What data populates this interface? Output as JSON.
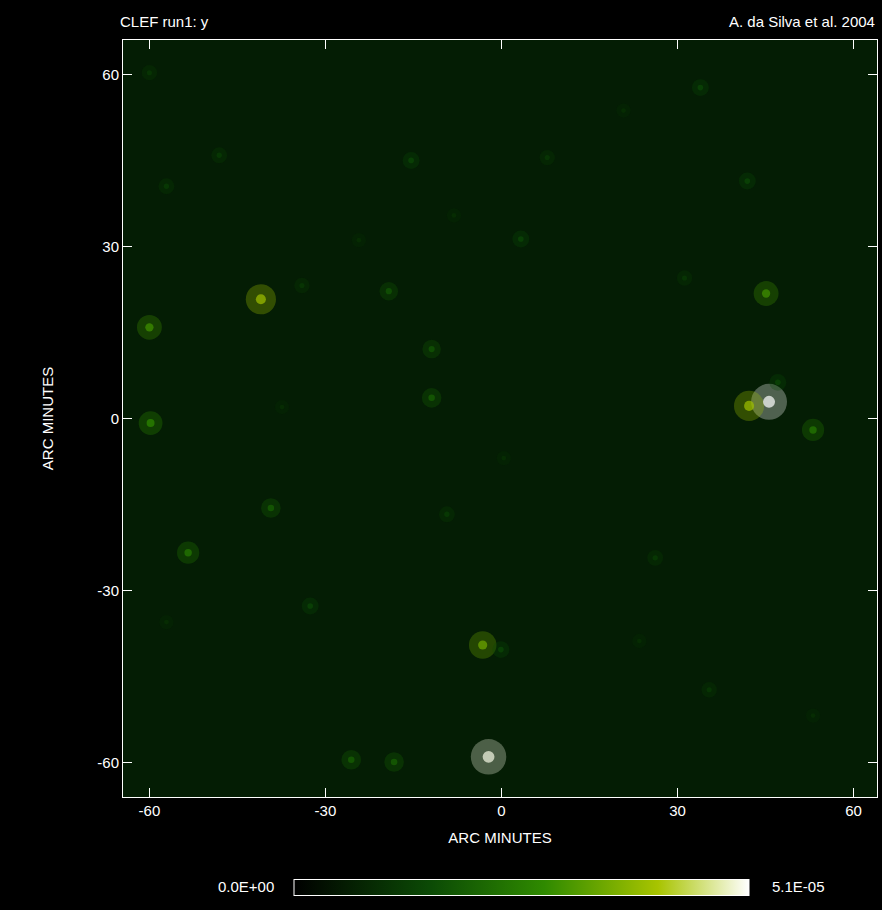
{
  "chart_data": {
    "type": "scatter",
    "title": "CLEF run1: y",
    "subtitle": "A. da Silva et al. 2004",
    "xlabel": "ARC MINUTES",
    "ylabel": "ARC MINUTES",
    "xlim": [
      -64.5,
      64
    ],
    "ylim": [
      -66,
      66
    ],
    "xticks": [
      -60,
      -30,
      0,
      30,
      60
    ],
    "yticks": [
      -60,
      -30,
      0,
      30,
      60
    ],
    "grid": false,
    "sources": {
      "x": [
        45.6,
        42.2,
        -41,
        -2.2,
        -3.2,
        45.1,
        -60,
        -59.8,
        53.1,
        -53.4,
        -39.3,
        -11.9,
        -11.9,
        -19.2,
        33.9,
        -57.1,
        -48.1,
        -15.4,
        3.3,
        41.9,
        26.2,
        -25.6,
        -18.3,
        -0.1,
        35.4,
        -9.3,
        -32.6,
        -60,
        7.8,
        -34,
        31.2,
        47.1,
        0.4,
        23.5,
        53.1,
        -57.1,
        -37.4,
        -24.3,
        -8.1,
        20.8
      ],
      "y": [
        2.9,
        2.2,
        20.8,
        -59,
        -39.5,
        21.8,
        15.9,
        -0.8,
        -2,
        -23.4,
        -15.6,
        3.6,
        12.1,
        22.2,
        57.7,
        40.5,
        45.9,
        45,
        31.3,
        41.4,
        -24.3,
        -59.5,
        -59.9,
        -40.3,
        -47.3,
        -16.7,
        -32.7,
        60.3,
        45.5,
        23.2,
        24.5,
        6.3,
        -6.9,
        -38.8,
        -51.8,
        -35.5,
        2,
        31.1,
        35.4,
        53.7
      ],
      "values": [
        5.1e-05,
        4e-05,
        4e-05,
        5e-05,
        3.5e-05,
        3e-05,
        3e-05,
        2.8e-05,
        2.5e-05,
        2.5e-05,
        2e-05,
        2e-05,
        1.8e-05,
        1.8e-05,
        1.5e-05,
        1.3e-05,
        1.3e-05,
        1.5e-05,
        1.5e-05,
        1.5e-05,
        1.3e-05,
        2e-05,
        2e-05,
        1.5e-05,
        1.2e-05,
        1.3e-05,
        1.5e-05,
        1.2e-05,
        1.2e-05,
        1.2e-05,
        1.2e-05,
        1.5e-05,
        1e-05,
        1e-05,
        1e-05,
        1e-05,
        1e-05,
        1e-05,
        1e-05,
        1e-05
      ]
    },
    "colorbar": {
      "range": [
        0,
        5.1e-05
      ],
      "ticks": [
        {
          "value": 0,
          "label": "0.0E+00"
        },
        {
          "value": 5.1e-05,
          "label": "5.1E-05"
        }
      ]
    }
  }
}
